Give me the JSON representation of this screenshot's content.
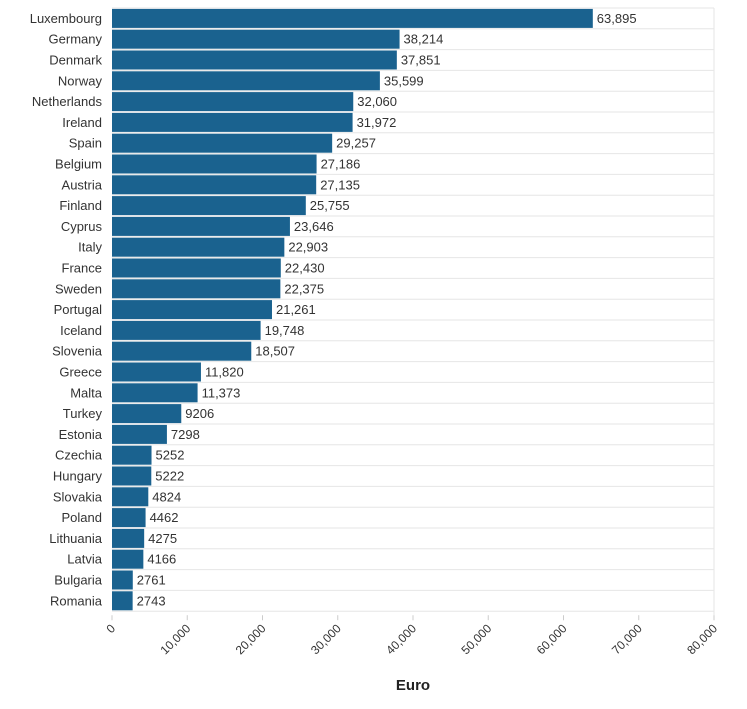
{
  "chart_data": {
    "type": "bar",
    "orientation": "horizontal",
    "categories": [
      "Luxembourg",
      "Germany",
      "Denmark",
      "Norway",
      "Netherlands",
      "Ireland",
      "Spain",
      "Belgium",
      "Austria",
      "Finland",
      "Cyprus",
      "Italy",
      "France",
      "Sweden",
      "Portugal",
      "Iceland",
      "Slovenia",
      "Greece",
      "Malta",
      "Turkey",
      "Estonia",
      "Czechia",
      "Hungary",
      "Slovakia",
      "Poland",
      "Lithuania",
      "Latvia",
      "Bulgaria",
      "Romania"
    ],
    "values": [
      63895,
      38214,
      37851,
      35599,
      32060,
      31972,
      29257,
      27186,
      27135,
      25755,
      23646,
      22903,
      22430,
      22375,
      21261,
      19748,
      18507,
      11820,
      11373,
      9206,
      7298,
      5252,
      5222,
      4824,
      4462,
      4275,
      4166,
      2761,
      2743
    ],
    "value_labels": [
      "63,895",
      "38,214",
      "37,851",
      "35,599",
      "32,060",
      "31,972",
      "29,257",
      "27,186",
      "27,135",
      "25,755",
      "23,646",
      "22,903",
      "22,430",
      "22,375",
      "21,261",
      "19,748",
      "18,507",
      "11,820",
      "11,373",
      "9206",
      "7298",
      "5252",
      "5222",
      "4824",
      "4462",
      "4275",
      "4166",
      "2761",
      "2743"
    ],
    "title": "",
    "xlabel": "Euro",
    "ylabel": "",
    "xlim": [
      0,
      80000
    ],
    "ticks": [
      0,
      10000,
      20000,
      30000,
      40000,
      50000,
      60000,
      70000,
      80000
    ],
    "tick_labels": [
      "0",
      "10,000",
      "20,000",
      "30,000",
      "40,000",
      "50,000",
      "60,000",
      "70,000",
      "80,000"
    ],
    "bar_color": "#1a628f",
    "grid": true
  }
}
